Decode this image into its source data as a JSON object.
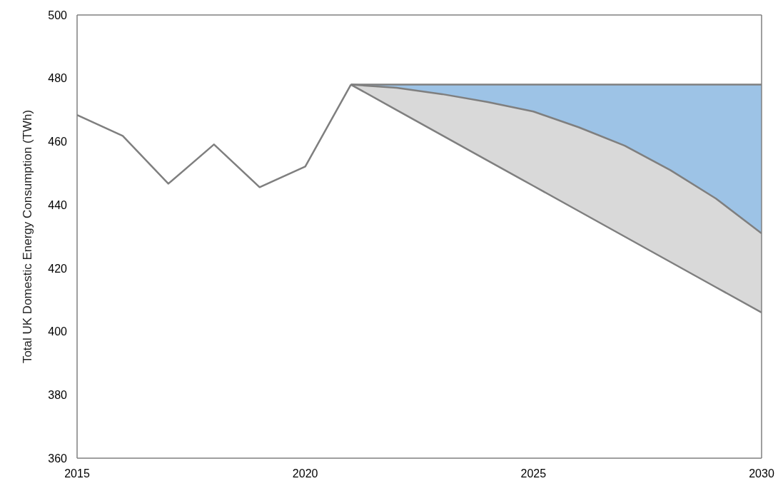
{
  "chart_data": {
    "type": "line",
    "ylabel": "Total UK Domestic Energy Consumption (TWh)",
    "xlim": [
      2015,
      2030
    ],
    "xticks": [
      2015,
      2020,
      2025,
      2030
    ],
    "ylim": [
      360,
      500
    ],
    "yticks": [
      360,
      380,
      400,
      420,
      440,
      460,
      480,
      500
    ],
    "grid": false,
    "marker": "none",
    "line_style": "solid",
    "series": [
      {
        "color": "#7f7f7f",
        "x": [
          2015,
          2016,
          2017,
          2018,
          2019,
          2020,
          2021
        ],
        "values": [
          468.4,
          461.8,
          446.7,
          459.1,
          445.6,
          452.1,
          478
        ]
      },
      {
        "color": "#7f7f7f",
        "x": [
          2021,
          2022,
          2023,
          2024,
          2025,
          2026,
          2027,
          2028,
          2029,
          2030
        ],
        "values": [
          478,
          478,
          478,
          478,
          478,
          478,
          478,
          478,
          478,
          478
        ],
        "lower": [
          478,
          477,
          475,
          472.5,
          469.5,
          464.5,
          458.7,
          451,
          442,
          431
        ],
        "upper": [
          478,
          478,
          478,
          478,
          478,
          478,
          478,
          478,
          478,
          478
        ]
      },
      {
        "color": "#7f7f7f",
        "x": [
          2021,
          2022,
          2023,
          2024,
          2025,
          2026,
          2027,
          2028,
          2029,
          2030
        ],
        "values": [
          478,
          477,
          475,
          472.5,
          469.5,
          464.5,
          458.7,
          451,
          442,
          431
        ]
      },
      {
        "color": "#7f7f7f",
        "x": [
          2021,
          2022,
          2023,
          2024,
          2025,
          2026,
          2027,
          2028,
          2029,
          2030
        ],
        "values": [
          478,
          470,
          462,
          454,
          446,
          438,
          430,
          422,
          414,
          406
        ],
        "lower": [
          478,
          470,
          462,
          454,
          446,
          438,
          430,
          422,
          414,
          406
        ],
        "upper": [
          478,
          477,
          475,
          472.5,
          469.5,
          464.5,
          458.7,
          451,
          442,
          431
        ]
      }
    ]
  }
}
